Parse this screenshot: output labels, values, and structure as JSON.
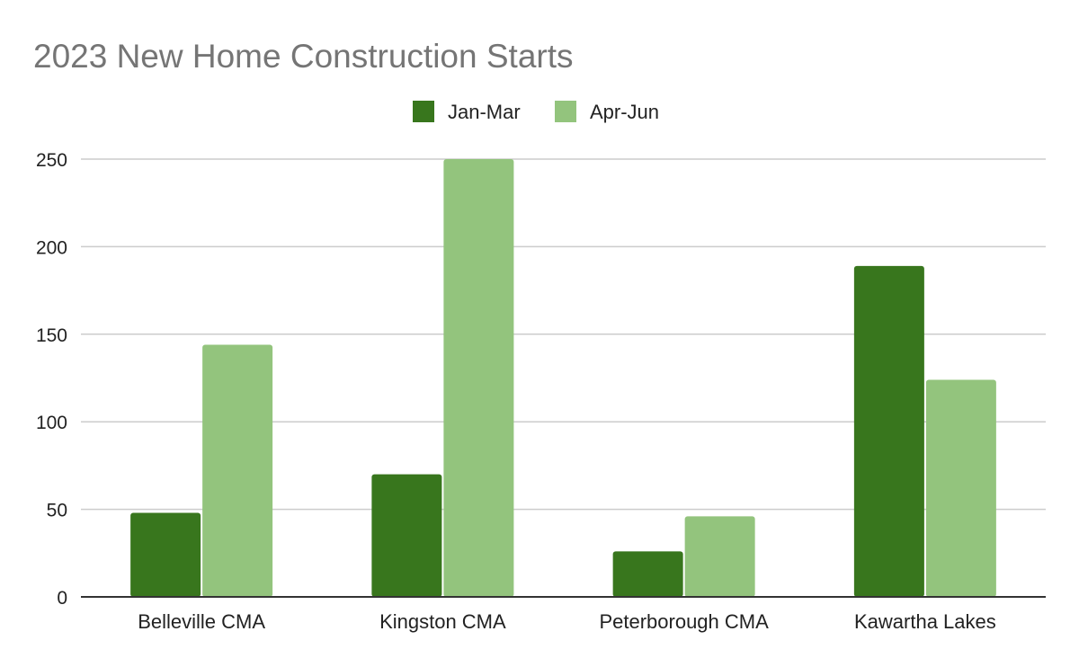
{
  "chart_data": {
    "type": "bar",
    "title": "2023 New Home Construction Starts",
    "categories": [
      "Belleville CMA",
      "Kingston CMA",
      "Peterborough CMA",
      "Kawartha Lakes"
    ],
    "series": [
      {
        "name": "Jan-Mar",
        "color": "#38761d",
        "values": [
          48,
          70,
          26,
          189
        ]
      },
      {
        "name": "Apr-Jun",
        "color": "#93c47d",
        "values": [
          144,
          250,
          46,
          124
        ]
      }
    ],
    "ylim": [
      0,
      250
    ],
    "yticks": [
      0,
      50,
      100,
      150,
      200,
      250
    ],
    "xlabel": "",
    "ylabel": "",
    "grid": true,
    "legend_position": "top-center"
  }
}
